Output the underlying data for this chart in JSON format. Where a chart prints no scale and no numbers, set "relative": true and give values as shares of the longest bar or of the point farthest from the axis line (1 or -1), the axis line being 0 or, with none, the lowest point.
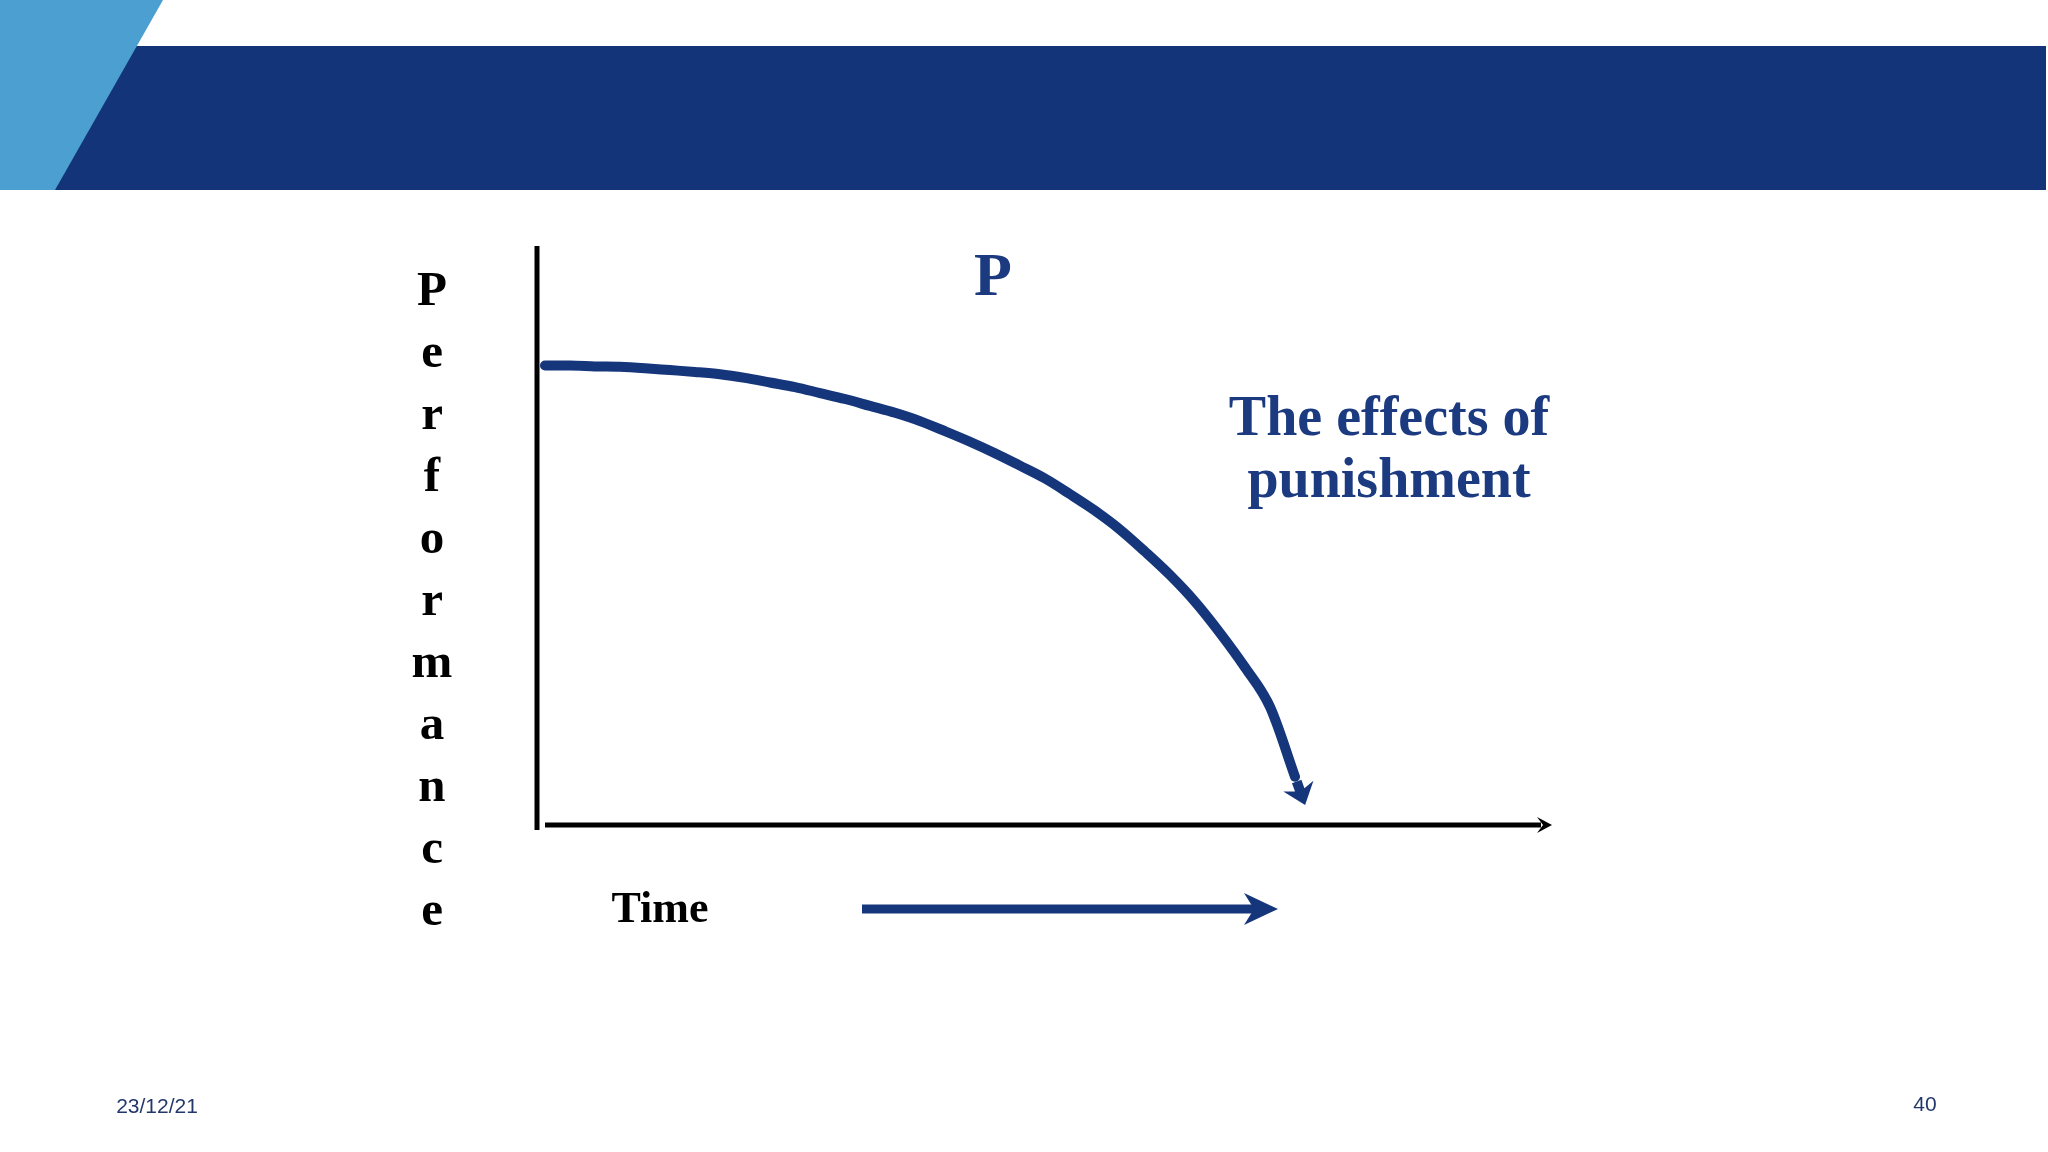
{
  "chart_data": {
    "type": "line",
    "title": "P",
    "xlabel": "Time",
    "ylabel": "Performance",
    "annotations": [
      "The effects of punishment",
      "23/12/21",
      "40"
    ],
    "categories": [
      null,
      null,
      null,
      null,
      null,
      null,
      null,
      null,
      null,
      null,
      null,
      null,
      null,
      null,
      null,
      null,
      null,
      null,
      null,
      null,
      null,
      null,
      null,
      null,
      null,
      null,
      null,
      null,
      null,
      null,
      null,
      null,
      null,
      null,
      null,
      null,
      null,
      null,
      null,
      null,
      null
    ],
    "values": [
      1.0,
      1.0,
      0.998,
      0.997,
      0.994,
      0.99,
      0.986,
      0.981,
      0.973,
      0.963,
      0.953,
      0.94,
      0.927,
      0.912,
      0.897,
      0.879,
      0.857,
      0.834,
      0.809,
      0.782,
      0.754,
      0.72,
      0.684,
      0.643,
      0.595,
      0.544,
      0.486,
      0.418,
      0.343,
      0.257,
      0.105,
      null,
      null,
      null,
      null,
      null,
      null,
      null,
      null,
      null,
      null
    ],
    "color": "#16367c",
    "relative": true
  }
}
